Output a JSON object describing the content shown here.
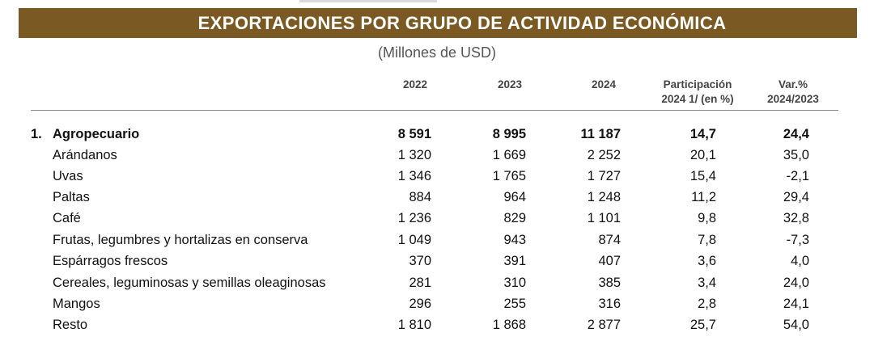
{
  "title": "EXPORTACIONES POR GRUPO DE ACTIVIDAD ECONÓMICA",
  "subtitle": "(Millones de USD)",
  "columns": {
    "y2022": "2022",
    "y2023": "2023",
    "y2024": "2024",
    "part_line1": "Participación",
    "part_line2": "2024 1/ (en %)",
    "var_line1": "Var.%",
    "var_line2": "2024/2023"
  },
  "rows": [
    {
      "num": "1.",
      "label": "Agropecuario",
      "y2022": "8 591",
      "y2023": "8 995",
      "y2024": "11 187",
      "part": "14,7",
      "var": "24,4"
    },
    {
      "num": "",
      "label": "Arándanos",
      "y2022": "1 320",
      "y2023": "1 669",
      "y2024": "2 252",
      "part": "20,1",
      "var": "35,0"
    },
    {
      "num": "",
      "label": "Uvas",
      "y2022": "1 346",
      "y2023": "1 765",
      "y2024": "1 727",
      "part": "15,4",
      "var": "-2,1"
    },
    {
      "num": "",
      "label": "Paltas",
      "y2022": "884",
      "y2023": "964",
      "y2024": "1 248",
      "part": "11,2",
      "var": "29,4"
    },
    {
      "num": "",
      "label": "Café",
      "y2022": "1 236",
      "y2023": "829",
      "y2024": "1 101",
      "part": "9,8",
      "var": "32,8"
    },
    {
      "num": "",
      "label": "Frutas, legumbres y hortalizas en conserva",
      "y2022": "1 049",
      "y2023": "943",
      "y2024": "874",
      "part": "7,8",
      "var": "-7,3"
    },
    {
      "num": "",
      "label": "Espárragos frescos",
      "y2022": "370",
      "y2023": "391",
      "y2024": "407",
      "part": "3,6",
      "var": "4,0"
    },
    {
      "num": "",
      "label": "Cereales, leguminosas y semillas oleaginosas",
      "y2022": "281",
      "y2023": "310",
      "y2024": "385",
      "part": "3,4",
      "var": "24,0"
    },
    {
      "num": "",
      "label": "Mangos",
      "y2022": "296",
      "y2023": "255",
      "y2024": "316",
      "part": "2,8",
      "var": "24,1"
    },
    {
      "num": "",
      "label": "Resto",
      "y2022": "1 810",
      "y2023": "1 868",
      "y2024": "2 877",
      "part": "25,7",
      "var": "54,0"
    }
  ]
}
